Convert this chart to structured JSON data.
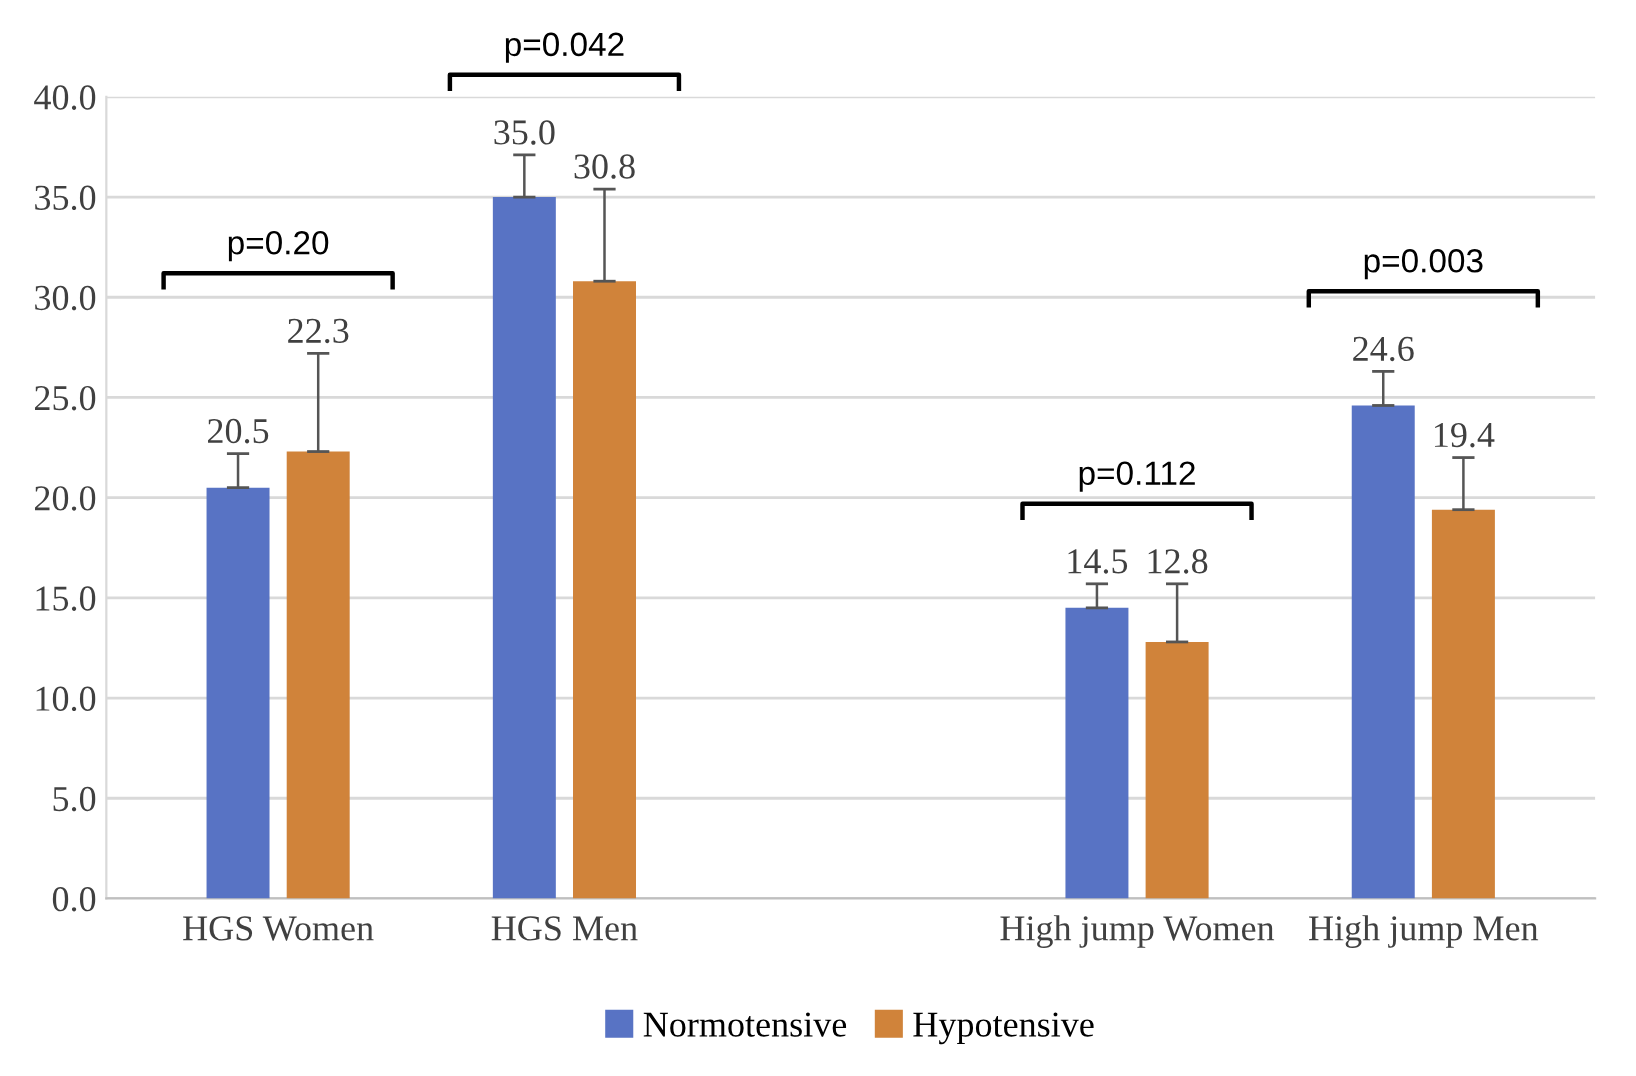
{
  "chart_data": {
    "type": "bar",
    "categories": [
      "HGS Women",
      "HGS Men",
      null,
      "High jump Women",
      "High jump Men"
    ],
    "series": [
      {
        "name": "Normotensive",
        "color": "#5873c4",
        "values": [
          20.5,
          35.0,
          null,
          14.5,
          24.6
        ],
        "value_labels": [
          "20.5",
          "35.0",
          null,
          "14.5",
          "24.6"
        ],
        "errors": [
          [
            20.5,
            22.2
          ],
          [
            35.0,
            37.1
          ],
          null,
          [
            14.5,
            15.7
          ],
          [
            24.6,
            26.3
          ]
        ]
      },
      {
        "name": "Hypotensive",
        "color": "#d0833a",
        "values": [
          22.3,
          30.8,
          null,
          12.8,
          19.4
        ],
        "value_labels": [
          "22.3",
          "30.8",
          null,
          "12.8",
          "19.4"
        ],
        "errors": [
          [
            22.3,
            27.2
          ],
          [
            30.8,
            35.4
          ],
          null,
          [
            12.8,
            15.7
          ],
          [
            19.4,
            22.0
          ]
        ]
      }
    ],
    "ylim": [
      0,
      40
    ],
    "yticks": [
      {
        "value": 0,
        "label": "0.0"
      },
      {
        "value": 5,
        "label": "5.0"
      },
      {
        "value": 10,
        "label": "10.0"
      },
      {
        "value": 15,
        "label": "15.0"
      },
      {
        "value": 20,
        "label": "20.0"
      },
      {
        "value": 25,
        "label": "25.0"
      },
      {
        "value": 30,
        "label": "30.0"
      },
      {
        "value": 35,
        "label": "35.0"
      },
      {
        "value": 40,
        "label": "40.0"
      }
    ],
    "grid": "y",
    "legend": "bottom",
    "annotations": [
      "p=0.20",
      "p=0.042",
      "p=0.112",
      "p=0.003"
    ]
  }
}
